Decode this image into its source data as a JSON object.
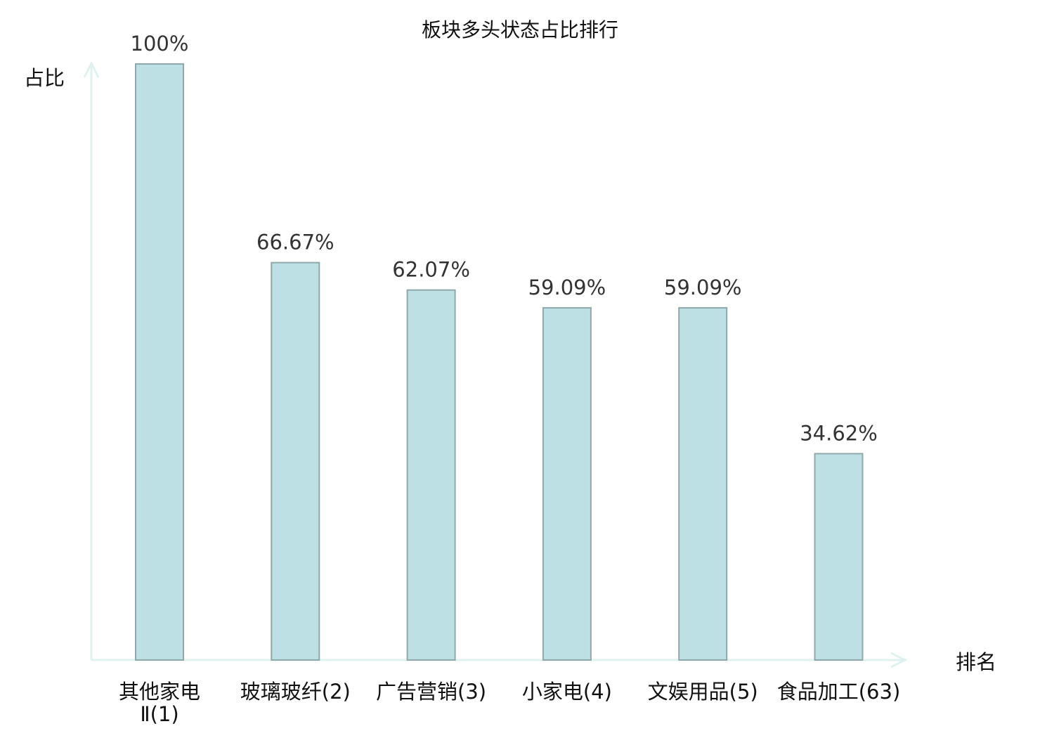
{
  "chart_data": {
    "type": "bar",
    "title": "板块多头状态占比排行",
    "xlabel": "排名",
    "ylabel": "占比",
    "categories": [
      {
        "name": "其他家电Ⅱ",
        "rank": "(1)",
        "highlight": false
      },
      {
        "name": "玻璃玻纤",
        "rank": "(2)",
        "highlight": false
      },
      {
        "name": "广告营销",
        "rank": "(3)",
        "highlight": false
      },
      {
        "name": "小家电",
        "rank": "(4)",
        "highlight": false
      },
      {
        "name": "文娱用品",
        "rank": "(5)",
        "highlight": false
      },
      {
        "name": "食品加工",
        "rank": "(63)",
        "highlight": true
      }
    ],
    "values": [
      100,
      66.67,
      62.07,
      59.09,
      59.09,
      34.62
    ],
    "data_labels": [
      "100%",
      "66.67%",
      "62.07%",
      "59.09%",
      "59.09%",
      "34.62%"
    ],
    "ylim": [
      0,
      100
    ],
    "grid": false,
    "colors": {
      "bar_fill": "#bce0e3",
      "bar_stroke": "#8fa9ab",
      "axis": "#dff2ef",
      "highlight_text": "#e8141b",
      "text": "#111111",
      "label_text": "#333333"
    }
  }
}
